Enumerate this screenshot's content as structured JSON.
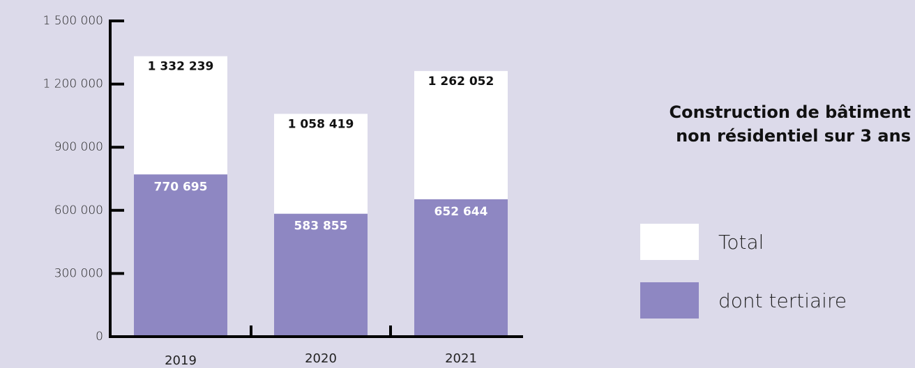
{
  "chart_data": {
    "type": "bar",
    "barmode": "overlay",
    "title": [
      "Construction de bâtiment",
      "non résidentiel sur 3 ans"
    ],
    "categories": [
      "2019",
      "2020",
      "2021"
    ],
    "series": [
      {
        "name": "Total",
        "color": "#ffffff",
        "values": [
          1332239,
          1058419,
          1262052
        ],
        "value_labels": [
          "1 332 239",
          "1 058 419",
          "1 262 052"
        ]
      },
      {
        "name": "dont tertiaire",
        "color": "#8e87c2",
        "values": [
          770695,
          583855,
          652644
        ],
        "value_labels": [
          "770 695",
          "583 855",
          "652 644"
        ]
      }
    ],
    "ylim": [
      0,
      1500000
    ],
    "yticks": [
      0,
      {
        "value": 300000,
        "label": "300 000"
      },
      {
        "value": 600000,
        "label": "600 000"
      },
      {
        "value": 900000,
        "label": "900 000"
      },
      {
        "value": 1200000,
        "label": "1 200 000"
      },
      {
        "value": 1500000,
        "label": "1 500 000"
      }
    ]
  }
}
